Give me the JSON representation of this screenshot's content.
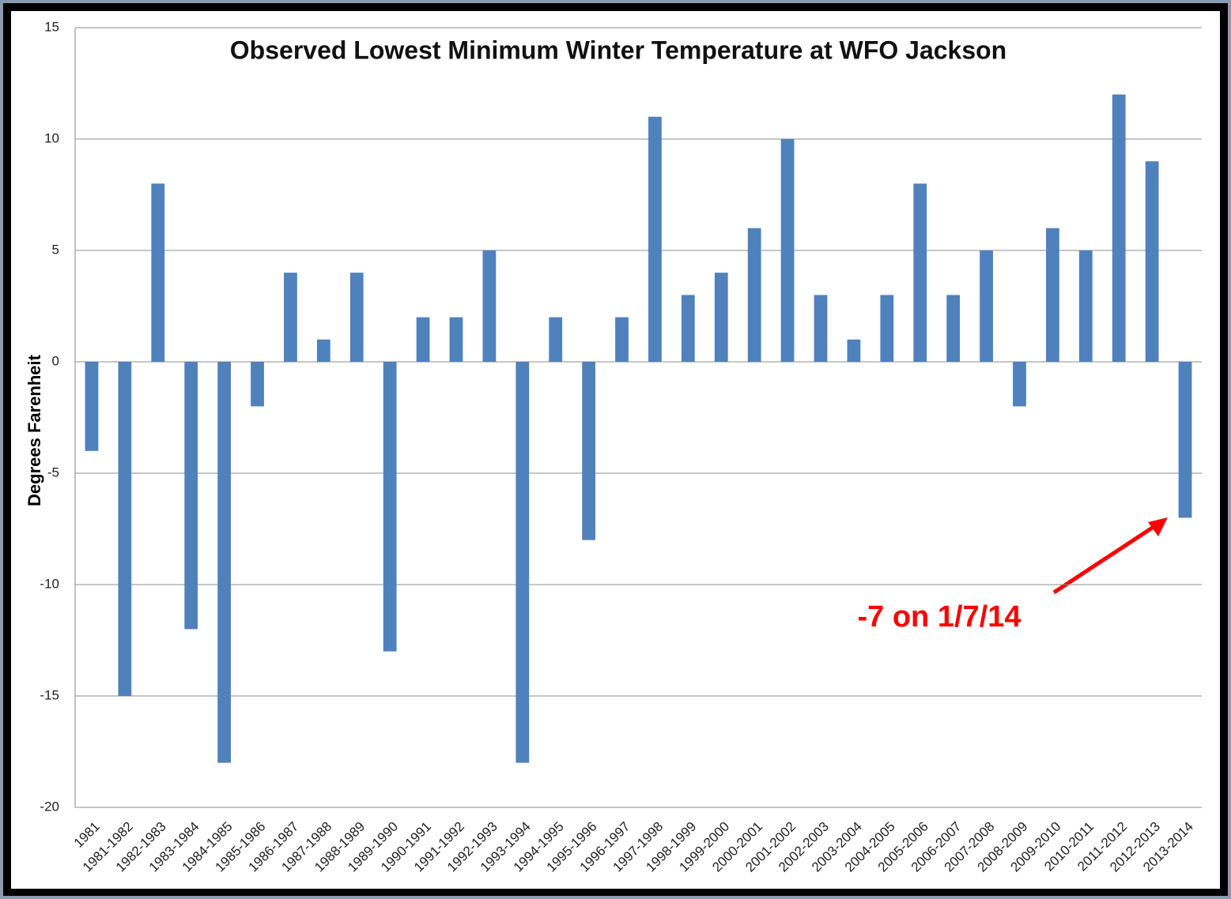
{
  "chart_data": {
    "type": "bar",
    "title": "Observed Lowest Minimum Winter Temperature at WFO Jackson",
    "y_label": "Degrees Farenheit",
    "annotation": "-7 on 1/7/14",
    "categories": [
      "1981",
      "1981-1982",
      "1982-1983",
      "1983-1984",
      "1984-1985",
      "1985-1986",
      "1986-1987",
      "1987-1988",
      "1988-1989",
      "1989-1990",
      "1990-1991",
      "1991-1992",
      "1992-1993",
      "1993-1994",
      "1994-1995",
      "1995-1996",
      "1996-1997",
      "1997-1998",
      "1998-1999",
      "1999-2000",
      "2000-2001",
      "2001-2002",
      "2002-2003",
      "2003-2004",
      "2004-2005",
      "2005-2006",
      "2006-2007",
      "2007-2008",
      "2008-2009",
      "2009-2010",
      "2010-2011",
      "2011-2012",
      "2012-2013",
      "2013-2014"
    ],
    "values": [
      -4,
      -15,
      8,
      -12,
      -18,
      -2,
      4,
      1,
      4,
      -13,
      2,
      2,
      5,
      -18,
      2,
      -8,
      2,
      11,
      3,
      4,
      6,
      10,
      3,
      1,
      3,
      8,
      3,
      5,
      -2,
      6,
      5,
      12,
      9,
      -7
    ],
    "color": "#4f81bd",
    "ylim": [
      -20,
      15
    ],
    "yticks": [
      -20,
      -15,
      -10,
      -5,
      0,
      5,
      10,
      15
    ],
    "grid": true
  }
}
